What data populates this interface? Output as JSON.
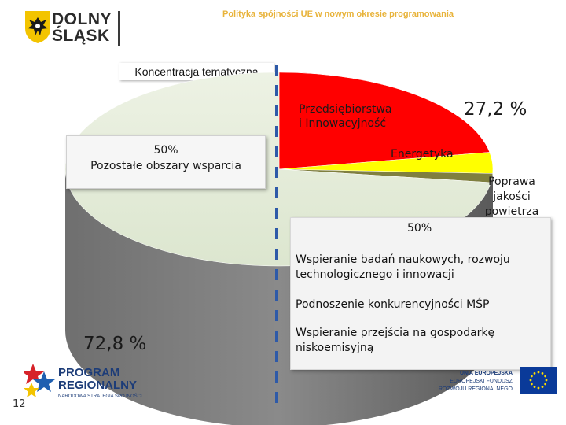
{
  "header": {
    "logo_text_line1": "DOLNY",
    "logo_text_line2": "ŚLĄSK",
    "slide_title": "Polityka spójności UE w nowym okresie programowania"
  },
  "topic_label": "Koncentracja tematyczna",
  "chart_data": {
    "type": "pie",
    "slices": [
      {
        "label": "Przedsiębiorstwa i Innowacyjność",
        "value": 22.2,
        "color": "#ff0000"
      },
      {
        "label": "Energetyka",
        "value": 3.5,
        "color": "#ffff00"
      },
      {
        "label": "Poprawa jakości powietrza",
        "value": 1.5,
        "color": "#7f7f3f"
      },
      {
        "label": "Pozostałe obszary wsparcia",
        "value": 72.8,
        "color": "#dfe8d3"
      }
    ],
    "annotations": [
      "27,2 %",
      "72,8 %",
      "50%",
      "50%"
    ]
  },
  "labels": {
    "red_line1": "Przedsiębiorstwa",
    "red_line2": "i Innowacyjność",
    "energy": "Energetyka",
    "air_line1": "Poprawa",
    "air_line2": "jakości",
    "air_line3": "powietrza",
    "pct_right": "27,2 %",
    "pct_left": "72,8 %"
  },
  "other_box": {
    "pct": "50%",
    "label": "Pozostałe obszary wsparcia"
  },
  "info_box": {
    "pct": "50%",
    "item1_line1": "Wspieranie badań naukowych, rozwoju",
    "item1_line2": "technologicznego i innowacji",
    "item2": "Podnoszenie konkurencyjności MŚP",
    "item3_line1": "Wspieranie przejścia na gospodarkę",
    "item3_line2": "niskoemisyjną"
  },
  "footer": {
    "program_line1": "PROGRAM",
    "program_line2": "REGIONALNY",
    "program_line3": "NARODOWA STRATEGIA SPÓJNOŚCI",
    "eu_line1": "UNIA EUROPEJSKA",
    "eu_line2": "EUROPEJSKI FUNDUSZ",
    "eu_line3": "ROZWOJU REGIONALNEGO",
    "page_number": "12"
  },
  "colors": {
    "accent_title": "#e8b33a",
    "divider_blue": "#2e5aa8",
    "eu_flag": "#0a3a99",
    "eu_stars": "#ffdd00"
  }
}
